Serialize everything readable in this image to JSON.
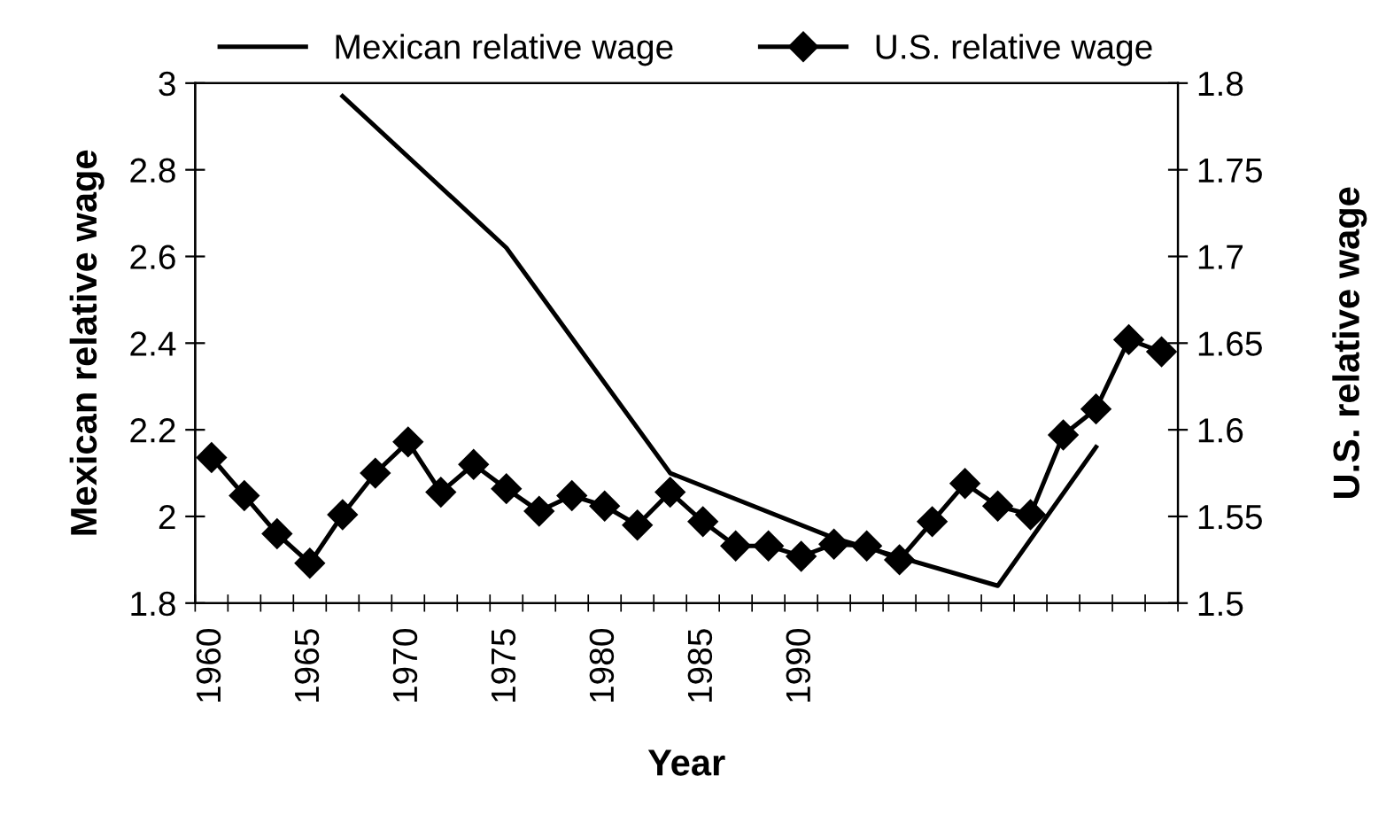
{
  "chart_data": {
    "type": "line",
    "xlabel": "Year",
    "ylabel": "Mexican relative wage",
    "y2label": "U.S. relative wage",
    "categories": [
      "1960",
      null,
      null,
      "1965",
      null,
      null,
      "1970",
      null,
      null,
      "1975",
      null,
      null,
      "1980",
      null,
      null,
      "1985",
      null,
      null,
      "1990",
      null,
      null,
      null,
      null,
      null,
      null,
      null,
      null,
      null,
      null,
      null
    ],
    "series": [
      {
        "name": "Mexican relative wage",
        "color": "#000000",
        "marker": "none",
        "values": [
          null,
          null,
          null,
          null,
          2.97,
          null,
          null,
          null,
          null,
          2.62,
          null,
          null,
          null,
          null,
          2.1,
          null,
          null,
          null,
          null,
          1.95,
          null,
          null,
          null,
          null,
          1.84,
          null,
          null,
          2.16,
          null,
          null
        ]
      },
      {
        "name": "U.S. relative wage",
        "color": "#000000",
        "marker": "diamond",
        "axis": "y2",
        "values": [
          1.584,
          1.562,
          1.54,
          1.523,
          1.551,
          1.575,
          1.593,
          1.564,
          1.58,
          1.566,
          1.553,
          1.562,
          1.556,
          1.545,
          1.564,
          1.547,
          1.533,
          1.533,
          1.527,
          1.534,
          1.533,
          1.525,
          1.547,
          1.569,
          1.556,
          1.551,
          1.597,
          1.612,
          1.652,
          1.645
        ]
      }
    ],
    "ylim": [
      1.8,
      3
    ],
    "yticks": [
      1.8,
      2,
      2.2,
      2.4,
      2.6,
      2.8,
      3
    ],
    "y2lim": [
      1.5,
      1.8
    ],
    "y2ticks": [
      1.5,
      1.55,
      1.6,
      1.65,
      1.7,
      1.75,
      1.8
    ],
    "grid": false,
    "legend": "top",
    "line_style": "solid"
  }
}
